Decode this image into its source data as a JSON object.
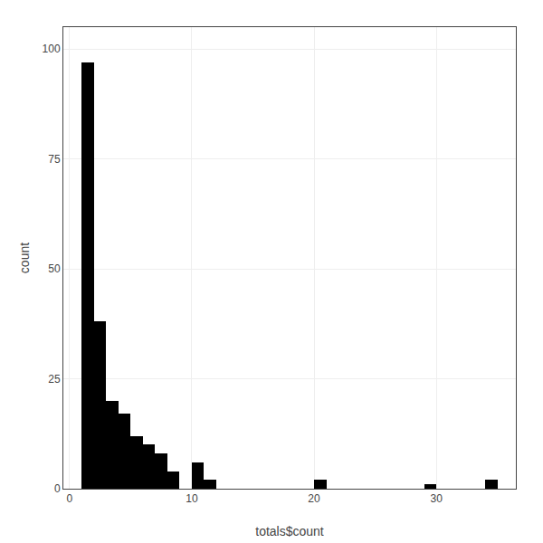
{
  "chart_data": {
    "type": "histogram",
    "xlabel": "totals$count",
    "ylabel": "count",
    "bins": [
      0,
      1,
      2,
      3,
      4,
      5,
      6,
      7,
      8,
      9,
      10,
      11,
      12,
      13,
      14,
      15,
      16,
      17,
      18,
      19,
      20,
      21,
      22,
      23,
      24,
      25,
      26,
      27,
      28,
      29,
      30,
      31,
      32,
      33,
      34,
      35,
      36
    ],
    "values": [
      0,
      97,
      38,
      20,
      17,
      12,
      10,
      8,
      4,
      0,
      6,
      2,
      0,
      0,
      0,
      0,
      0,
      0,
      0,
      0,
      2,
      0,
      0,
      0,
      0,
      0,
      0,
      0,
      0,
      1,
      0,
      0,
      0,
      0,
      2,
      0
    ],
    "color": "#000000",
    "xlim": [
      -0.5,
      36.5
    ],
    "ylim": [
      0,
      105
    ],
    "xticks": [
      0,
      10,
      20,
      30
    ],
    "yticks": [
      0,
      25,
      50,
      75,
      100
    ],
    "grid": true
  }
}
